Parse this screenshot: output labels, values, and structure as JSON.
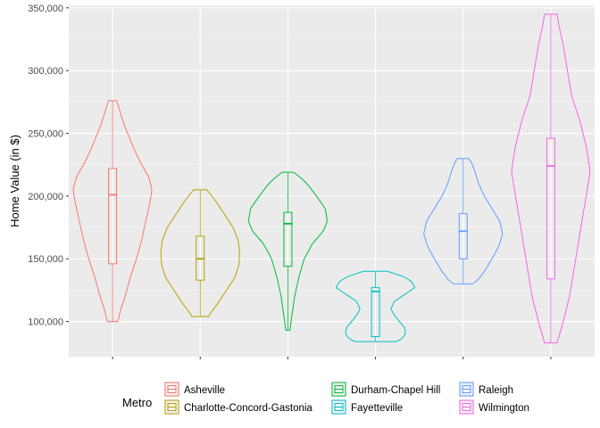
{
  "chart_data": {
    "type": "violin",
    "title": "",
    "xlabel": "",
    "ylabel": "Home Value (in $)",
    "ylim": [
      72000,
      352000
    ],
    "y_ticks": [
      100000,
      150000,
      200000,
      250000,
      300000,
      350000
    ],
    "y_tick_labels": [
      "100,000",
      "150,000",
      "200,000",
      "250,000",
      "300,000",
      "350,000"
    ],
    "grid": true,
    "legend": {
      "title": "Metro",
      "position": "bottom"
    },
    "series": [
      {
        "name": "Asheville",
        "color": "#F8766D",
        "min": 100000,
        "max": 276000,
        "q1": 146000,
        "median": 201000,
        "q3": 222000,
        "density": [
          [
            100000,
            0.05
          ],
          [
            110000,
            0.08
          ],
          [
            120000,
            0.12
          ],
          [
            135000,
            0.17
          ],
          [
            150000,
            0.23
          ],
          [
            165000,
            0.28
          ],
          [
            180000,
            0.32
          ],
          [
            195000,
            0.36
          ],
          [
            205000,
            0.38
          ],
          [
            215000,
            0.35
          ],
          [
            225000,
            0.28
          ],
          [
            235000,
            0.22
          ],
          [
            245000,
            0.17
          ],
          [
            255000,
            0.12
          ],
          [
            265000,
            0.08
          ],
          [
            276000,
            0.04
          ]
        ]
      },
      {
        "name": "Charlotte-Concord-Gastonia",
        "color": "#B79F00",
        "min": 104000,
        "max": 205000,
        "q1": 133000,
        "median": 150000,
        "q3": 168000,
        "density": [
          [
            104000,
            0.1
          ],
          [
            108000,
            0.14
          ],
          [
            115000,
            0.22
          ],
          [
            125000,
            0.32
          ],
          [
            135000,
            0.42
          ],
          [
            145000,
            0.47
          ],
          [
            155000,
            0.48
          ],
          [
            165000,
            0.46
          ],
          [
            175000,
            0.4
          ],
          [
            185000,
            0.3
          ],
          [
            195000,
            0.2
          ],
          [
            201000,
            0.13
          ],
          [
            205000,
            0.08
          ]
        ]
      },
      {
        "name": "Durham-Chapel Hill",
        "color": "#00BA38",
        "min": 93000,
        "max": 219000,
        "q1": 144000,
        "median": 178000,
        "q3": 187000,
        "density": [
          [
            93000,
            0.03
          ],
          [
            105000,
            0.06
          ],
          [
            120000,
            0.1
          ],
          [
            135000,
            0.16
          ],
          [
            150000,
            0.24
          ],
          [
            162000,
            0.36
          ],
          [
            172000,
            0.52
          ],
          [
            180000,
            0.58
          ],
          [
            190000,
            0.55
          ],
          [
            200000,
            0.42
          ],
          [
            210000,
            0.28
          ],
          [
            216000,
            0.16
          ],
          [
            219000,
            0.08
          ]
        ]
      },
      {
        "name": "Fayetteville",
        "color": "#00BFC4",
        "min": 84000,
        "max": 140000,
        "q1": 88000,
        "median": 124000,
        "q3": 127000,
        "density": [
          [
            84000,
            0.24
          ],
          [
            86000,
            0.3
          ],
          [
            90000,
            0.35
          ],
          [
            95000,
            0.34
          ],
          [
            100000,
            0.28
          ],
          [
            105000,
            0.22
          ],
          [
            110000,
            0.18
          ],
          [
            116000,
            0.22
          ],
          [
            122000,
            0.35
          ],
          [
            127000,
            0.46
          ],
          [
            132000,
            0.42
          ],
          [
            136000,
            0.32
          ],
          [
            140000,
            0.14
          ]
        ]
      },
      {
        "name": "Raleigh",
        "color": "#619CFF",
        "min": 130000,
        "max": 230000,
        "q1": 150000,
        "median": 172000,
        "q3": 186000,
        "density": [
          [
            130000,
            0.1
          ],
          [
            133000,
            0.15
          ],
          [
            140000,
            0.22
          ],
          [
            150000,
            0.3
          ],
          [
            160000,
            0.37
          ],
          [
            170000,
            0.41
          ],
          [
            180000,
            0.38
          ],
          [
            190000,
            0.3
          ],
          [
            200000,
            0.22
          ],
          [
            210000,
            0.16
          ],
          [
            220000,
            0.12
          ],
          [
            226000,
            0.09
          ],
          [
            230000,
            0.06
          ]
        ]
      },
      {
        "name": "Wilmington",
        "color": "#F564E3",
        "min": 83000,
        "max": 345000,
        "q1": 134000,
        "median": 224000,
        "q3": 246000,
        "density": [
          [
            83000,
            0.03
          ],
          [
            100000,
            0.06
          ],
          [
            120000,
            0.09
          ],
          [
            140000,
            0.11
          ],
          [
            160000,
            0.13
          ],
          [
            180000,
            0.15
          ],
          [
            200000,
            0.17
          ],
          [
            220000,
            0.19
          ],
          [
            240000,
            0.17
          ],
          [
            260000,
            0.14
          ],
          [
            280000,
            0.1
          ],
          [
            300000,
            0.08
          ],
          [
            320000,
            0.06
          ],
          [
            335000,
            0.04
          ],
          [
            345000,
            0.03
          ]
        ]
      }
    ]
  }
}
